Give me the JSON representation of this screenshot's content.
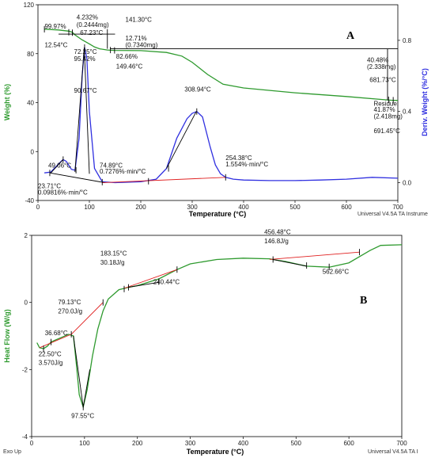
{
  "chart_data": [
    {
      "type": "line",
      "panel_label": "A",
      "x_axis": {
        "label": "Temperature (°C)",
        "range": [
          0,
          700
        ],
        "ticks": [
          "0",
          "100",
          "200",
          "300",
          "400",
          "500",
          "600",
          "700"
        ]
      },
      "y_left": {
        "label": "Weight (%)",
        "color": "#2e9a2e",
        "range": [
          -40,
          120
        ],
        "ticks": [
          "-40",
          "0",
          "40",
          "80",
          "120"
        ]
      },
      "y_right": {
        "label": "Deriv. Weight (%/°C)",
        "color": "#3030e0",
        "range": [
          -0.1,
          1.0
        ],
        "ticks": [
          "0.0",
          "0.4",
          "0.8"
        ]
      },
      "series": [
        {
          "axis": "left",
          "color": "#2e9a2e",
          "x": [
            12.5,
            40,
            60,
            67,
            72,
            85,
            100,
            110,
            120,
            135,
            141,
            150,
            200,
            250,
            280,
            300,
            330,
            360,
            400,
            500,
            600,
            670,
            690,
            700
          ],
          "y": [
            99.97,
            99.4,
            98.4,
            97.5,
            95.4,
            91.5,
            88.0,
            85.5,
            84.0,
            83.0,
            82.8,
            82.66,
            82.5,
            81.0,
            78.0,
            73.0,
            63.0,
            55.0,
            52.0,
            48.0,
            45.0,
            42.5,
            41.87,
            41.8
          ]
        },
        {
          "axis": "right",
          "color": "#3030e0",
          "x": [
            12.5,
            25,
            35,
            45,
            49,
            55,
            65,
            72,
            80,
            86,
            90.67,
            95,
            100,
            110,
            125,
            150,
            200,
            230,
            250,
            270,
            290,
            300,
            308.94,
            320,
            335,
            345,
            355,
            365,
            380,
            400,
            450,
            500,
            550,
            600,
            650,
            700
          ],
          "y": [
            0.055,
            0.06,
            0.09,
            0.12,
            0.13,
            0.12,
            0.075,
            0.07,
            0.25,
            0.6,
            0.76,
            0.7,
            0.4,
            0.08,
            0.005,
            0.0,
            0.005,
            0.02,
            0.08,
            0.25,
            0.36,
            0.39,
            0.4,
            0.37,
            0.2,
            0.1,
            0.05,
            0.03,
            0.02,
            0.015,
            0.012,
            0.012,
            0.015,
            0.02,
            0.03,
            0.025
          ]
        }
      ],
      "annotations": [
        {
          "text": "99.97%",
          "x": 13,
          "y": 100.5,
          "axis": "left"
        },
        {
          "text": "12.54°C",
          "x": 13,
          "y": 85.5,
          "axis": "left"
        },
        {
          "text": "4.232%",
          "x": 75,
          "y": 108,
          "axis": "left"
        },
        {
          "text": "(0.2444mg)",
          "x": 75,
          "y": 102,
          "axis": "left"
        },
        {
          "text": "67.23°C",
          "x": 82,
          "y": 95.5,
          "axis": "left"
        },
        {
          "text": "141.30°C",
          "x": 170,
          "y": 106,
          "axis": "left"
        },
        {
          "text": "12.71%",
          "x": 170,
          "y": 91,
          "axis": "left"
        },
        {
          "text": "(0.7340mg)",
          "x": 170,
          "y": 85.5,
          "axis": "left"
        },
        {
          "text": "72.25°C",
          "x": 70,
          "y": 80,
          "axis": "left"
        },
        {
          "text": "82.66%",
          "x": 152,
          "y": 76,
          "axis": "left"
        },
        {
          "text": "95.42%",
          "x": 70,
          "y": 74,
          "axis": "left"
        },
        {
          "text": "149.46°C",
          "x": 152,
          "y": 68,
          "axis": "left"
        },
        {
          "text": "40.48%",
          "x": 640,
          "y": 73,
          "axis": "left"
        },
        {
          "text": "(2.338mg)",
          "x": 640,
          "y": 67.5,
          "axis": "left"
        },
        {
          "text": "681.73°C",
          "x": 645,
          "y": 57,
          "axis": "left"
        },
        {
          "text": "Residue:",
          "x": 653,
          "y": 37.5,
          "axis": "left"
        },
        {
          "text": "41.87%",
          "x": 653,
          "y": 32.5,
          "axis": "left"
        },
        {
          "text": "(2.418mg)",
          "x": 653,
          "y": 27,
          "axis": "left"
        },
        {
          "text": "691.45°C",
          "x": 653,
          "y": 15,
          "axis": "left"
        },
        {
          "text": "90.67°C",
          "x": 70,
          "y": 48,
          "axis": "left"
        },
        {
          "text": "308.94°C",
          "x": 285,
          "y": 49,
          "axis": "left"
        },
        {
          "text": "49.06°C",
          "x": 20,
          "y": -13,
          "axis": "left"
        },
        {
          "text": "74.89°C",
          "x": 120,
          "y": -13,
          "axis": "left"
        },
        {
          "text": "0.7276%·min/°C",
          "x": 120,
          "y": -18,
          "axis": "left"
        },
        {
          "text": "254.38°C",
          "x": 365,
          "y": -7,
          "axis": "left"
        },
        {
          "text": "1.554%·min/°C",
          "x": 365,
          "y": -12,
          "axis": "left"
        },
        {
          "text": "23.71°C",
          "x": 0,
          "y": -30,
          "axis": "left"
        },
        {
          "text": "0.09816%·min/°C",
          "x": 0,
          "y": -35,
          "axis": "left"
        }
      ],
      "footer": "Universal V4.5A TA Instrume"
    },
    {
      "type": "line",
      "panel_label": "B",
      "x_axis": {
        "label": "Temperature (°C)",
        "range": [
          0,
          700
        ],
        "ticks": [
          "0",
          "100",
          "200",
          "300",
          "400",
          "500",
          "600",
          "700"
        ]
      },
      "y_left": {
        "label": "Heat Flow (W/g)",
        "color": "#2e9a2e",
        "range": [
          -4,
          2
        ],
        "ticks": [
          "-4",
          "-2",
          "0",
          "2"
        ]
      },
      "series": [
        {
          "axis": "left",
          "color": "#2e9a2e",
          "x": [
            10,
            15,
            22.5,
            30,
            36.68,
            45,
            60,
            70,
            79.13,
            85,
            90,
            97.55,
            105,
            115,
            125,
            135,
            145,
            165,
            183.15,
            200,
            240.44,
            275,
            300,
            350,
            400,
            450,
            456.48,
            480,
            520,
            562.66,
            600,
            640,
            660,
            700
          ],
          "y": [
            -1.2,
            -1.35,
            -1.38,
            -1.3,
            -1.18,
            -1.12,
            -1.02,
            -0.95,
            -1.0,
            -1.9,
            -2.75,
            -3.12,
            -2.6,
            -1.6,
            -0.8,
            -0.25,
            0.1,
            0.38,
            0.45,
            0.5,
            0.7,
            0.98,
            1.15,
            1.28,
            1.32,
            1.3,
            1.28,
            1.22,
            1.08,
            1.05,
            1.18,
            1.55,
            1.7,
            1.72
          ]
        }
      ],
      "annotations": [
        {
          "text": "183.15°C",
          "x": 130,
          "y": 1.4,
          "axis": "left"
        },
        {
          "text": "30.18J/g",
          "x": 130,
          "y": 1.13,
          "axis": "left"
        },
        {
          "text": "79.13°C",
          "x": 50,
          "y": -0.05,
          "axis": "left"
        },
        {
          "text": "270.0J/g",
          "x": 50,
          "y": -0.33,
          "axis": "left"
        },
        {
          "text": "240.44°C",
          "x": 230,
          "y": 0.55,
          "axis": "left"
        },
        {
          "text": "456.48°C",
          "x": 440,
          "y": 2.03,
          "axis": "left"
        },
        {
          "text": "146.8J/g",
          "x": 440,
          "y": 1.76,
          "axis": "left"
        },
        {
          "text": "562.66°C",
          "x": 550,
          "y": 0.86,
          "axis": "left"
        },
        {
          "text": "36.68°C",
          "x": 25,
          "y": -0.98,
          "axis": "left"
        },
        {
          "text": "22.50°C",
          "x": 13,
          "y": -1.6,
          "axis": "left"
        },
        {
          "text": "3.570J/g",
          "x": 13,
          "y": -1.86,
          "axis": "left"
        },
        {
          "text": "97.55°C",
          "x": 75,
          "y": -3.45,
          "axis": "left"
        }
      ],
      "footer_left": "Exo Up",
      "footer": "Universal V4.5A TA I"
    }
  ]
}
